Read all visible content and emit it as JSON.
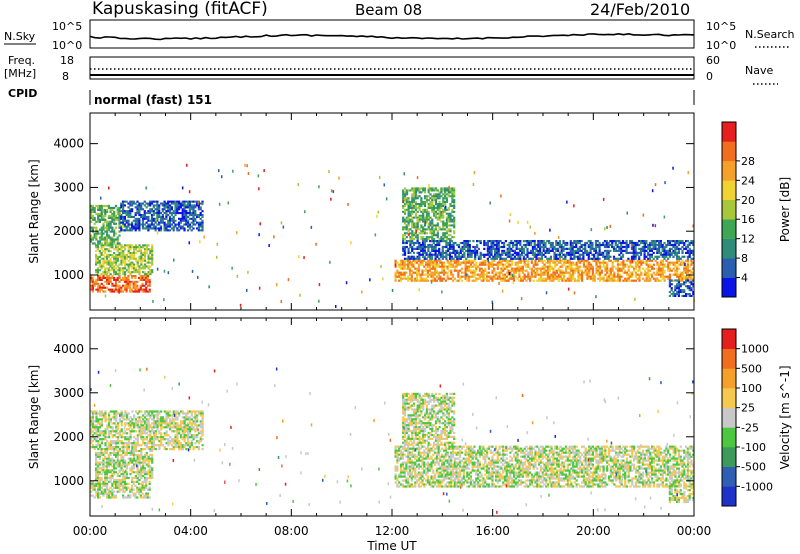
{
  "header": {
    "station": "Kapuskasing (fitACF)",
    "beam": "Beam 08",
    "date": "24/Feb/2010",
    "cpid_text": "normal (fast) 151"
  },
  "aux_panels": {
    "nsky_label": "N.Sky",
    "nsearch_label": "N.Search",
    "noise_ticks": [
      "10^5",
      "10^0"
    ],
    "freq_label": "Freq.",
    "freq_unit": "[MHz]",
    "freq_ticks": [
      "18",
      "8"
    ],
    "nave_label": "Nave",
    "nave_ticks": [
      "60",
      "0"
    ],
    "cpid_label": "CPID"
  },
  "chart_data": [
    {
      "type": "heatmap",
      "title": "Power",
      "ylabel": "Slant Range [km]",
      "xlabel": "Time UT",
      "x_ticks": [
        "00:00",
        "04:00",
        "08:00",
        "12:00",
        "16:00",
        "20:00",
        "00:00"
      ],
      "y_ticks": [
        1000,
        2000,
        3000,
        4000
      ],
      "ylim": [
        200,
        4700
      ],
      "xlim_hours": [
        0,
        24
      ],
      "colorbar": {
        "label": "Power [dB]",
        "ticks": [
          "4",
          "8",
          "12",
          "16",
          "20",
          "24",
          "28"
        ],
        "colors": [
          "#0a14e6",
          "#2a5fb0",
          "#2f8c78",
          "#3fa653",
          "#a8c83c",
          "#f0d232",
          "#f5a028",
          "#f06e1e",
          "#e61e1e"
        ]
      },
      "bands": [
        {
          "t0": 0.0,
          "t1": 2.4,
          "r0": 600,
          "r1": 1000,
          "level": 7
        },
        {
          "t0": 0.2,
          "t1": 2.5,
          "r0": 1000,
          "r1": 1700,
          "level": 4
        },
        {
          "t0": 0.0,
          "t1": 1.2,
          "r0": 1700,
          "r1": 2600,
          "level": 3
        },
        {
          "t0": 1.2,
          "t1": 4.5,
          "r0": 2000,
          "r1": 2700,
          "level": 1
        },
        {
          "t0": 12.1,
          "t1": 24.0,
          "r0": 850,
          "r1": 1350,
          "level": 6
        },
        {
          "t0": 12.4,
          "t1": 24.0,
          "r0": 1350,
          "r1": 1800,
          "level": 1
        },
        {
          "t0": 12.4,
          "t1": 14.5,
          "r0": 1800,
          "r1": 3000,
          "level": 3
        },
        {
          "t0": 23.0,
          "t1": 24.0,
          "r0": 500,
          "r1": 900,
          "level": 1
        }
      ]
    },
    {
      "type": "heatmap",
      "title": "Velocity",
      "ylabel": "Slant Range [km]",
      "xlabel": "Time UT",
      "x_ticks": [
        "00:00",
        "04:00",
        "08:00",
        "12:00",
        "16:00",
        "20:00",
        "00:00"
      ],
      "y_ticks": [
        1000,
        2000,
        3000,
        4000
      ],
      "ylim": [
        200,
        4700
      ],
      "xlim_hours": [
        0,
        24
      ],
      "colorbar": {
        "label": "Velocity [m s^-1]",
        "ticks": [
          "1000",
          "500",
          "100",
          "25",
          "-25",
          "-100",
          "-500",
          "-1000"
        ],
        "colors": [
          "#1e32c8",
          "#2f5fb4",
          "#3c9a5a",
          "#4cc840",
          "#c8c8c8",
          "#f5c850",
          "#f5a028",
          "#f06e1e",
          "#e61e1e"
        ]
      },
      "bands": [
        {
          "t0": 0.0,
          "t1": 2.4,
          "r0": 600,
          "r1": 1000,
          "level": 4
        },
        {
          "t0": 0.2,
          "t1": 2.5,
          "r0": 1000,
          "r1": 1700,
          "level": 4
        },
        {
          "t0": 0.0,
          "t1": 4.5,
          "r0": 1700,
          "r1": 2600,
          "level": 4
        },
        {
          "t0": 12.1,
          "t1": 24.0,
          "r0": 850,
          "r1": 1800,
          "level": 4
        },
        {
          "t0": 12.4,
          "t1": 14.5,
          "r0": 1800,
          "r1": 3000,
          "level": 4
        },
        {
          "t0": 23.0,
          "t1": 24.0,
          "r0": 500,
          "r1": 900,
          "level": 4
        }
      ]
    }
  ]
}
